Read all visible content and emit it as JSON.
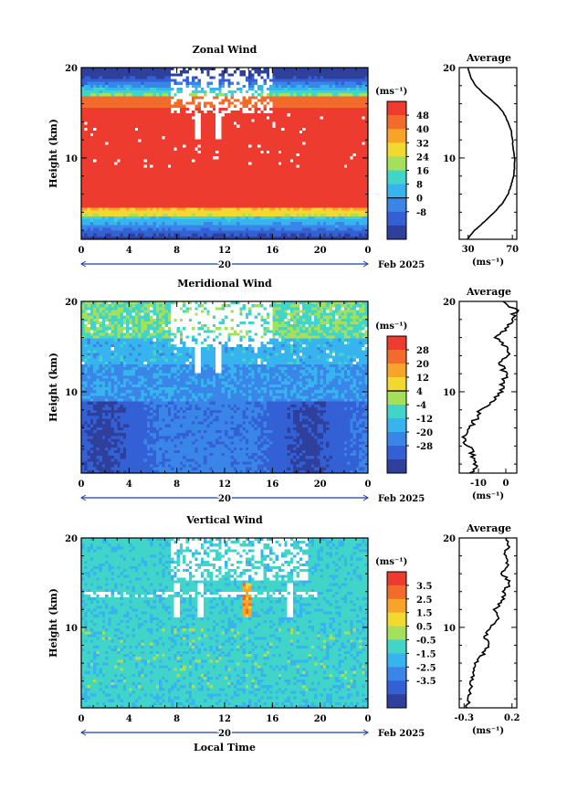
{
  "page": {
    "xlabel": "Local Time",
    "date_label": "Feb 2025",
    "day_label": "20"
  },
  "chart_data": [
    {
      "type": "heatmap",
      "title": "Zonal Wind",
      "ylabel": "Height (km)",
      "x_ticks": [
        "0",
        "4",
        "8",
        "12",
        "16",
        "20",
        "0"
      ],
      "y_ticks": [
        "20",
        "10"
      ],
      "xlim": [
        0,
        24
      ],
      "ylim": [
        1,
        20
      ],
      "colorbar": {
        "unit": "(ms⁻¹)",
        "levels": [
          "48",
          "40",
          "32",
          "24",
          "16",
          "8",
          "0",
          "-8"
        ],
        "colors": [
          "#ee3b2f",
          "#f36b2b",
          "#f7a429",
          "#f2d92f",
          "#a4e05c",
          "#41d4c9",
          "#37b3ee",
          "#3a86e8",
          "#3460d6",
          "#2e3f9c"
        ]
      },
      "average": {
        "title": "Average",
        "x_ticks": [
          "30",
          "70"
        ],
        "xlabel": "(ms⁻¹)",
        "xlim": [
          22,
          74
        ],
        "height": [
          1,
          2,
          3,
          4,
          5,
          6,
          7,
          8,
          9,
          10,
          11,
          12,
          13,
          14,
          15,
          16,
          17,
          18,
          19,
          20
        ],
        "values": [
          29,
          36,
          45,
          54,
          61,
          66,
          69,
          71,
          72,
          72,
          71,
          70,
          69,
          66,
          62,
          55,
          45,
          37,
          32,
          30
        ]
      }
    },
    {
      "type": "heatmap",
      "title": "Meridional Wind",
      "ylabel": "Height (km)",
      "x_ticks": [
        "0",
        "4",
        "8",
        "12",
        "16",
        "20",
        "0"
      ],
      "y_ticks": [
        "20",
        "10"
      ],
      "xlim": [
        0,
        24
      ],
      "ylim": [
        1,
        20
      ],
      "colorbar": {
        "unit": "(ms⁻¹)",
        "levels": [
          "28",
          "20",
          "12",
          "4",
          "-4",
          "-12",
          "-20",
          "-28"
        ],
        "colors": [
          "#ee3b2f",
          "#f36b2b",
          "#f7a429",
          "#f2d92f",
          "#a4e05c",
          "#41d4c9",
          "#37b3ee",
          "#3a86e8",
          "#3460d6",
          "#2e3f9c"
        ]
      },
      "average": {
        "title": "Average",
        "x_ticks": [
          "-10",
          "0"
        ],
        "xlabel": "(ms⁻¹)",
        "xlim": [
          -17,
          4
        ],
        "height": [
          1,
          2,
          3,
          4,
          5,
          6,
          7,
          8,
          9,
          10,
          11,
          12,
          13,
          14,
          15,
          16,
          17,
          18,
          19,
          20
        ],
        "values": [
          -13,
          -11,
          -12,
          -14,
          -15,
          -13,
          -11,
          -9,
          -5,
          -2,
          -1,
          0,
          -2,
          1,
          0,
          -3,
          0,
          2,
          4,
          -1
        ]
      }
    },
    {
      "type": "heatmap",
      "title": "Vertical Wind",
      "ylabel": "Height (km)",
      "x_ticks": [
        "0",
        "4",
        "8",
        "12",
        "16",
        "20",
        "0"
      ],
      "y_ticks": [
        "20",
        "10"
      ],
      "xlim": [
        0,
        24
      ],
      "ylim": [
        1,
        20
      ],
      "colorbar": {
        "unit": "(ms⁻¹)",
        "levels": [
          "3.5",
          "2.5",
          "1.5",
          "0.5",
          "-0.5",
          "-1.5",
          "-2.5",
          "-3.5"
        ],
        "colors": [
          "#ee3b2f",
          "#f36b2b",
          "#f7a429",
          "#f2d92f",
          "#a4e05c",
          "#41d4c9",
          "#37b3ee",
          "#3a86e8",
          "#3460d6",
          "#2e3f9c"
        ]
      },
      "average": {
        "title": "Average",
        "x_ticks": [
          "-0.3",
          "0.2"
        ],
        "xlabel": "(ms⁻¹)",
        "xlim": [
          -0.35,
          0.25
        ],
        "height": [
          1,
          2,
          3,
          4,
          5,
          6,
          7,
          8,
          9,
          10,
          11,
          12,
          13,
          14,
          15,
          16,
          17,
          18,
          19,
          20
        ],
        "values": [
          -0.27,
          -0.25,
          -0.24,
          -0.22,
          -0.2,
          -0.17,
          -0.1,
          -0.05,
          -0.08,
          -0.02,
          0.05,
          0.02,
          0.1,
          0.12,
          0.18,
          0.1,
          0.15,
          0.12,
          0.16,
          0.14
        ]
      }
    }
  ]
}
